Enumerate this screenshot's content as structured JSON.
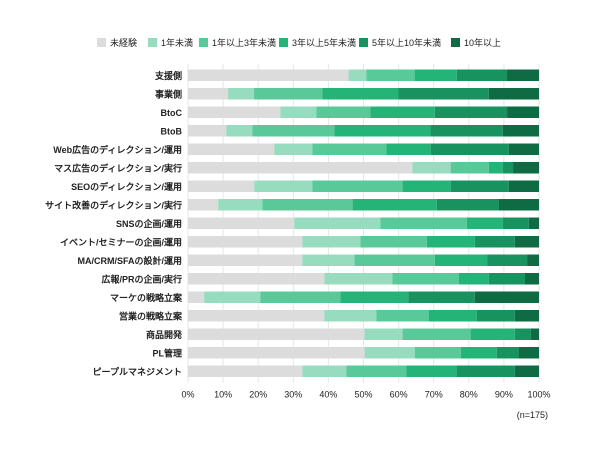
{
  "chart_data": {
    "type": "bar",
    "orientation": "horizontal",
    "stacked": true,
    "percent_stacked": true,
    "legend_position": "top",
    "grid": true,
    "xlim": [
      0,
      100
    ],
    "x_ticks": [
      "0%",
      "10%",
      "20%",
      "30%",
      "40%",
      "50%",
      "60%",
      "70%",
      "80%",
      "90%",
      "100%"
    ],
    "note": "(n=175)",
    "categories": [
      "支援側",
      "事業側",
      "BtoC",
      "BtoB",
      "Web広告のディレクション/運用",
      "マス広告のディレクション/実行",
      "SEOのディレクション/運用",
      "サイト改善のディレクション/実行",
      "SNSの企画/運用",
      "イベント/セミナーの企画/運用",
      "MA/CRM/SFAの設計/運用",
      "広報/PRの企画/実行",
      "マーケの戦略立案",
      "営業の戦略立案",
      "商品開発",
      "PL管理",
      "ピープルマネジメント"
    ],
    "series": [
      {
        "name": "未経験",
        "color": "#dcdcdc",
        "values": [
          45.7,
          11.4,
          26.3,
          10.9,
          24.6,
          64.0,
          18.9,
          8.6,
          30.3,
          32.6,
          32.6,
          38.9,
          4.6,
          38.9,
          50.3,
          50.3,
          32.6
        ]
      },
      {
        "name": "1年未満",
        "color": "#98dcc0",
        "values": [
          5.1,
          7.4,
          10.3,
          7.4,
          10.9,
          10.9,
          16.6,
          12.6,
          24.6,
          16.6,
          14.9,
          19.4,
          16.0,
          14.9,
          10.9,
          14.3,
          12.6
        ]
      },
      {
        "name": "1年以上3年未満",
        "color": "#5ac99a",
        "values": [
          13.7,
          19.4,
          15.4,
          23.4,
          21.1,
          10.9,
          25.7,
          25.7,
          24.6,
          18.9,
          22.9,
          18.9,
          22.9,
          14.9,
          19.4,
          13.1,
          17.1
        ]
      },
      {
        "name": "3年以上5年未満",
        "color": "#24b478",
        "values": [
          12.0,
          21.7,
          18.3,
          27.4,
          12.6,
          4.0,
          13.7,
          24.0,
          10.3,
          13.7,
          14.9,
          8.6,
          19.4,
          13.7,
          12.6,
          10.3,
          14.3
        ]
      },
      {
        "name": "5年以上10年未満",
        "color": "#189360",
        "values": [
          14.3,
          25.7,
          20.6,
          20.6,
          22.3,
          2.9,
          16.6,
          17.7,
          7.4,
          11.4,
          11.4,
          10.3,
          18.9,
          10.9,
          4.6,
          6.3,
          16.6
        ]
      },
      {
        "name": "10年以上",
        "color": "#0f6b44",
        "values": [
          9.1,
          14.3,
          9.1,
          10.3,
          8.6,
          7.4,
          8.6,
          11.4,
          2.9,
          6.9,
          3.4,
          4.0,
          18.3,
          6.9,
          2.3,
          5.7,
          6.9
        ]
      }
    ]
  }
}
